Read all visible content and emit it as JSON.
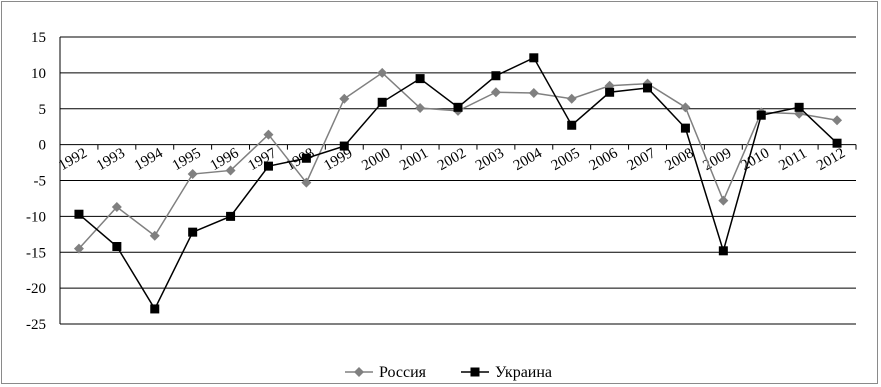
{
  "chart_data": {
    "type": "line",
    "title": "",
    "xlabel": "",
    "ylabel": "",
    "ylim": [
      -25,
      15
    ],
    "yticks": [
      15,
      10,
      5,
      0,
      -5,
      -10,
      -15,
      -20,
      -25
    ],
    "grid": true,
    "legend_position": "bottom",
    "categories": [
      "1992",
      "1993",
      "1994",
      "1995",
      "1996",
      "1997",
      "1998",
      "1999",
      "2000",
      "2001",
      "2002",
      "2003",
      "2004",
      "2005",
      "2006",
      "2007",
      "2008",
      "2009",
      "2010",
      "2011",
      "2012"
    ],
    "series": [
      {
        "name": "Россия",
        "color": "#808080",
        "marker": "diamond",
        "values": [
          -14.5,
          -8.7,
          -12.7,
          -4.1,
          -3.6,
          1.4,
          -5.3,
          6.4,
          10.0,
          5.1,
          4.7,
          7.3,
          7.2,
          6.4,
          8.2,
          8.5,
          5.2,
          -7.8,
          4.5,
          4.3,
          3.4
        ]
      },
      {
        "name": "Украина",
        "color": "#000000",
        "marker": "square",
        "values": [
          -9.7,
          -14.2,
          -22.9,
          -12.2,
          -10.0,
          -3.0,
          -1.9,
          -0.2,
          5.9,
          9.2,
          5.2,
          9.6,
          12.1,
          2.7,
          7.3,
          7.9,
          2.3,
          -14.8,
          4.1,
          5.2,
          0.2
        ]
      }
    ]
  }
}
